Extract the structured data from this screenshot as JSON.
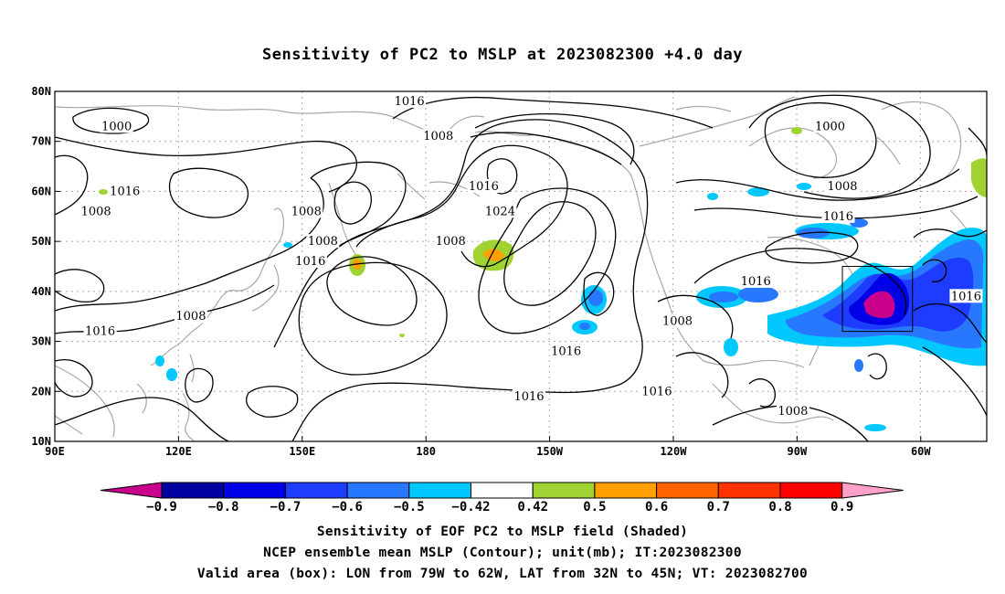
{
  "title": "Sensitivity of PC2 to MSLP at 2023082300 +4.0 day",
  "map": {
    "lat_labels": [
      "80N",
      "70N",
      "60N",
      "50N",
      "40N",
      "30N",
      "20N",
      "10N"
    ],
    "lon_labels": [
      "90E",
      "120E",
      "150E",
      "180",
      "150W",
      "120W",
      "90W",
      "60W"
    ],
    "contour_labels": [
      {
        "text": "1000",
        "lon": 105,
        "lat": 73
      },
      {
        "text": "1016",
        "lon": 107,
        "lat": 60
      },
      {
        "text": "1008",
        "lon": 100,
        "lat": 56
      },
      {
        "text": "1008",
        "lon": 151,
        "lat": 56
      },
      {
        "text": "1016",
        "lon": 176,
        "lat": 78
      },
      {
        "text": "1008",
        "lon": 183,
        "lat": 71
      },
      {
        "text": "1016",
        "lon": 194,
        "lat": 61
      },
      {
        "text": "1024",
        "lon": 198,
        "lat": 56
      },
      {
        "text": "1008",
        "lon": 155,
        "lat": 50
      },
      {
        "text": "1008",
        "lon": 186,
        "lat": 50
      },
      {
        "text": "1016",
        "lon": 152,
        "lat": 46
      },
      {
        "text": "1008",
        "lon": 123,
        "lat": 35
      },
      {
        "text": "1016",
        "lon": 101,
        "lat": 32
      },
      {
        "text": "1016",
        "lon": 214,
        "lat": 28
      },
      {
        "text": "1016",
        "lon": 236,
        "lat": 20
      },
      {
        "text": "1016",
        "lon": 205,
        "lat": 19
      },
      {
        "text": "1008",
        "lon": 241,
        "lat": 34
      },
      {
        "text": "1016",
        "lon": 260,
        "lat": 42
      },
      {
        "text": "1000",
        "lon": 278,
        "lat": 73
      },
      {
        "text": "1008",
        "lon": 281,
        "lat": 61
      },
      {
        "text": "1016",
        "lon": 280,
        "lat": 55
      },
      {
        "text": "1016",
        "lon": 311,
        "lat": 39
      },
      {
        "text": "1008",
        "lon": 269,
        "lat": 16
      }
    ],
    "valid_box": {
      "lon_from": 281,
      "lon_to": 298,
      "lat_from": 32,
      "lat_to": 45
    }
  },
  "colorbar": {
    "labels": [
      "-0.9",
      "-0.8",
      "-0.7",
      "-0.6",
      "-0.5",
      "-0.42",
      "0.42",
      "0.5",
      "0.6",
      "0.7",
      "0.8",
      "0.9"
    ],
    "colors": [
      "#c8008c",
      "#0000a0",
      "#0000e6",
      "#1e3cff",
      "#2878ff",
      "#00c8ff",
      "#ffffff",
      "#a0d232",
      "#ffa000",
      "#ff6400",
      "#ff3200",
      "#ff0000",
      "#ffa0c8"
    ]
  },
  "footer": {
    "line1": "Sensitivity of EOF PC2 to MSLP field (Shaded)",
    "line2": "NCEP ensemble mean MSLP (Contour); unit(mb); IT:2023082300",
    "line3": "Valid area (box): LON from 79W to 62W, LAT from 32N to 45N; VT: 2023082700"
  }
}
